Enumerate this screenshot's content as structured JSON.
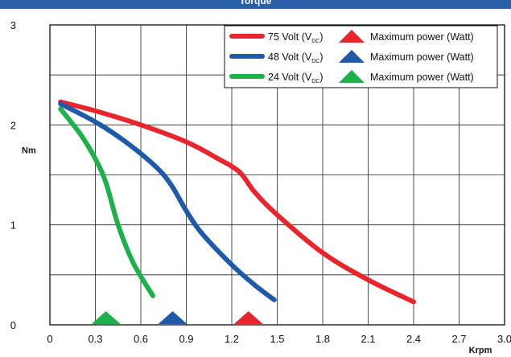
{
  "header": {
    "caption": "Torque"
  },
  "chart_data": {
    "type": "line",
    "title": "",
    "xlabel": "Krpm",
    "ylabel": "Nm",
    "xlim": [
      0,
      3.0
    ],
    "ylim": [
      0,
      3
    ],
    "x_ticks": [
      "0",
      "0.3",
      "0.6",
      "0.9",
      "1.2",
      "1.5",
      "1.8",
      "2.1",
      "2.4",
      "2.7",
      "3.0"
    ],
    "y_ticks": [
      "0",
      "1",
      "2",
      "3"
    ],
    "grid": true,
    "legend_position": "top-right",
    "series": [
      {
        "name": "75 Volt (VDC)",
        "name_main": "75 Volt (V",
        "name_sub": "DC",
        "name_close": ")",
        "color": "#e8242c",
        "x": [
          0.07,
          0.3,
          0.6,
          0.9,
          1.1,
          1.25,
          1.35,
          1.5,
          1.8,
          2.1,
          2.4
        ],
        "y": [
          2.23,
          2.14,
          2.0,
          1.83,
          1.67,
          1.53,
          1.33,
          1.1,
          0.72,
          0.45,
          0.23
        ],
        "max_power_marker": {
          "label": "Maximum power (Watt)",
          "x": 1.31
        }
      },
      {
        "name": "48 Volt (VDC)",
        "name_main": "48 Volt (V",
        "name_sub": "DC",
        "name_close": ")",
        "color": "#1f5aa8",
        "x": [
          0.07,
          0.3,
          0.5,
          0.7,
          0.8,
          0.9,
          1.0,
          1.2,
          1.35,
          1.48
        ],
        "y": [
          2.21,
          2.03,
          1.83,
          1.58,
          1.4,
          1.14,
          0.92,
          0.6,
          0.4,
          0.25
        ],
        "max_power_marker": {
          "label": "Maximum power (Watt)",
          "x": 0.81
        }
      },
      {
        "name": "24 Volt (VDC)",
        "name_main": "24 Volt (V",
        "name_sub": "DC",
        "name_close": ")",
        "color": "#1db14b",
        "x": [
          0.07,
          0.2,
          0.3,
          0.37,
          0.45,
          0.55,
          0.68
        ],
        "y": [
          2.16,
          1.91,
          1.66,
          1.42,
          1.0,
          0.62,
          0.29
        ],
        "max_power_marker": {
          "label": "Maximum power (Watt)",
          "x": 0.37
        }
      }
    ]
  }
}
